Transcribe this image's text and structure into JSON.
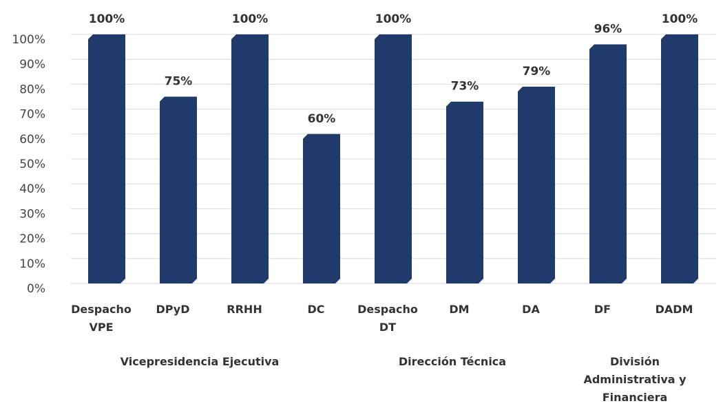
{
  "chart_data": {
    "type": "bar",
    "categories": [
      "Despacho VPE",
      "DPyD",
      "RRHH",
      "DC",
      "Despacho DT",
      "DM",
      "DA",
      "DF",
      "DADM"
    ],
    "values": [
      100,
      75,
      100,
      60,
      100,
      73,
      79,
      96,
      100
    ],
    "value_labels": [
      "100%",
      "75%",
      "100%",
      "60%",
      "100%",
      "73%",
      "79%",
      "96%",
      "100%"
    ],
    "groups": [
      "Vicepresidencia Ejecutiva",
      "Dirección Técnica",
      "División Administrativa y Financiera"
    ],
    "color": "#1f3a6b",
    "ylim": [
      0,
      100
    ],
    "yticks": [
      {
        "value": 0,
        "label": "0%"
      },
      {
        "value": 10,
        "label": "10%"
      },
      {
        "value": 20,
        "label": "20%"
      },
      {
        "value": 30,
        "label": "30%"
      },
      {
        "value": 40,
        "label": "40%"
      },
      {
        "value": 50,
        "label": "50%"
      },
      {
        "value": 60,
        "label": "60%"
      },
      {
        "value": 70,
        "label": "70%"
      },
      {
        "value": 80,
        "label": "80%"
      },
      {
        "value": 90,
        "label": "90%"
      },
      {
        "value": 100,
        "label": "100%"
      }
    ],
    "grid": true
  }
}
